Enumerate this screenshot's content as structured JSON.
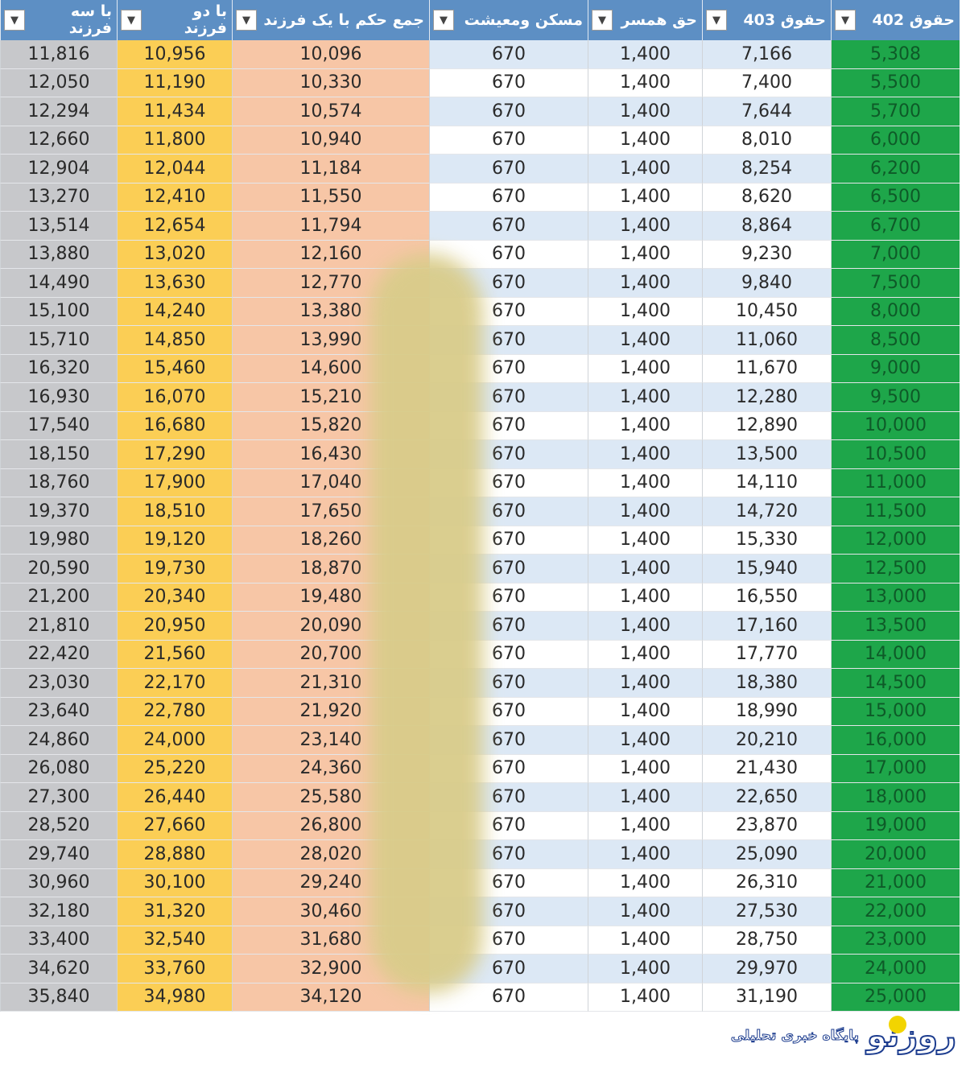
{
  "header": [
    "حقوق 402",
    "حقوق 403",
    "حق همسر",
    "مسکن ومعیشت",
    "جمع حکم با یک فرزند",
    "با دو فرزند",
    "با سه فرزند"
  ],
  "filter_icon": "dropdown-triangle",
  "columns": [
    [
      "5,308",
      "5,500",
      "5,700",
      "6,000",
      "6,200",
      "6,500",
      "6,700",
      "7,000",
      "7,500",
      "8,000",
      "8,500",
      "9,000",
      "9,500",
      "10,000",
      "10,500",
      "11,000",
      "11,500",
      "12,000",
      "12,500",
      "13,000",
      "13,500",
      "14,000",
      "14,500",
      "15,000",
      "16,000",
      "17,000",
      "18,000",
      "19,000",
      "20,000",
      "21,000",
      "22,000",
      "23,000",
      "24,000",
      "25,000"
    ],
    [
      "7,166",
      "7,400",
      "7,644",
      "8,010",
      "8,254",
      "8,620",
      "8,864",
      "9,230",
      "9,840",
      "10,450",
      "11,060",
      "11,670",
      "12,280",
      "12,890",
      "13,500",
      "14,110",
      "14,720",
      "15,330",
      "15,940",
      "16,550",
      "17,160",
      "17,770",
      "18,380",
      "18,990",
      "20,210",
      "21,430",
      "22,650",
      "23,870",
      "25,090",
      "26,310",
      "27,530",
      "28,750",
      "29,970",
      "31,190"
    ],
    [
      "1,400",
      "1,400",
      "1,400",
      "1,400",
      "1,400",
      "1,400",
      "1,400",
      "1,400",
      "1,400",
      "1,400",
      "1,400",
      "1,400",
      "1,400",
      "1,400",
      "1,400",
      "1,400",
      "1,400",
      "1,400",
      "1,400",
      "1,400",
      "1,400",
      "1,400",
      "1,400",
      "1,400",
      "1,400",
      "1,400",
      "1,400",
      "1,400",
      "1,400",
      "1,400",
      "1,400",
      "1,400",
      "1,400",
      "1,400"
    ],
    [
      "670",
      "670",
      "670",
      "670",
      "670",
      "670",
      "670",
      "670",
      "670",
      "670",
      "670",
      "670",
      "670",
      "670",
      "670",
      "670",
      "670",
      "670",
      "670",
      "670",
      "670",
      "670",
      "670",
      "670",
      "670",
      "670",
      "670",
      "670",
      "670",
      "670",
      "670",
      "670",
      "670",
      "670"
    ],
    [
      "10,096",
      "10,330",
      "10,574",
      "10,940",
      "11,184",
      "11,550",
      "11,794",
      "12,160",
      "12,770",
      "13,380",
      "13,990",
      "14,600",
      "15,210",
      "15,820",
      "16,430",
      "17,040",
      "17,650",
      "18,260",
      "18,870",
      "19,480",
      "20,090",
      "20,700",
      "21,310",
      "21,920",
      "23,140",
      "24,360",
      "25,580",
      "26,800",
      "28,020",
      "29,240",
      "30,460",
      "31,680",
      "32,900",
      "34,120"
    ],
    [
      "10,956",
      "11,190",
      "11,434",
      "11,800",
      "12,044",
      "12,410",
      "12,654",
      "13,020",
      "13,630",
      "14,240",
      "14,850",
      "15,460",
      "16,070",
      "16,680",
      "17,290",
      "17,900",
      "18,510",
      "19,120",
      "19,730",
      "20,340",
      "20,950",
      "21,560",
      "22,170",
      "22,780",
      "24,000",
      "25,220",
      "26,440",
      "27,660",
      "28,880",
      "30,100",
      "31,320",
      "32,540",
      "33,760",
      "34,980"
    ],
    [
      "11,816",
      "12,050",
      "12,294",
      "12,660",
      "12,904",
      "13,270",
      "13,514",
      "13,880",
      "14,490",
      "15,100",
      "15,710",
      "16,320",
      "16,930",
      "17,540",
      "18,150",
      "18,760",
      "19,370",
      "19,980",
      "20,590",
      "21,200",
      "21,810",
      "22,420",
      "23,030",
      "23,640",
      "24,860",
      "26,080",
      "27,300",
      "28,520",
      "29,740",
      "30,960",
      "32,180",
      "33,400",
      "34,620",
      "35,840"
    ]
  ],
  "colors": {
    "header": "#5d8fc4",
    "col_402": "#1ea64a",
    "col_1child": "#f7c6a6",
    "col_2child": "#fbce55",
    "col_3child": "#c7c8cb",
    "alt_row": "#dce8f5"
  },
  "watermark": {
    "logo": "روزنو",
    "tagline": "پایگاه خبری تحلیلی"
  }
}
